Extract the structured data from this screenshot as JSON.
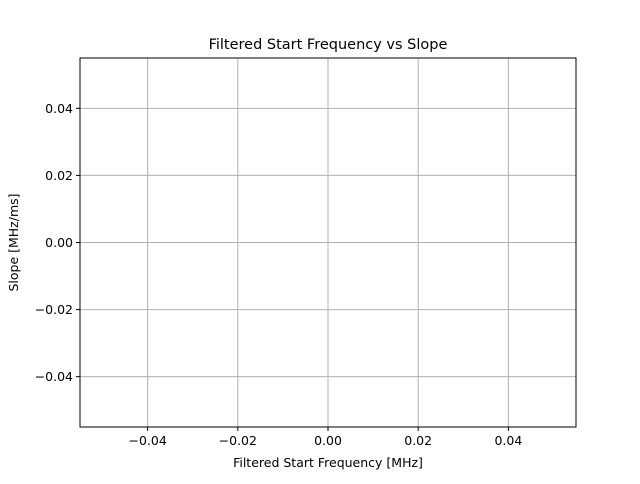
{
  "chart_data": {
    "type": "scatter",
    "title": "Filtered Start Frequency vs Slope",
    "xlabel": "Filtered Start Frequency [MHz]",
    "ylabel": "Slope [MHz/ms]",
    "xlim": [
      -0.055,
      0.055
    ],
    "ylim": [
      -0.055,
      0.055
    ],
    "xticks": [
      -0.04,
      -0.02,
      0.0,
      0.02,
      0.04
    ],
    "yticks": [
      -0.04,
      -0.02,
      0.0,
      0.02,
      0.04
    ],
    "xtick_labels": [
      "−0.04",
      "−0.02",
      "0.00",
      "0.02",
      "0.04"
    ],
    "ytick_labels": [
      "−0.04",
      "−0.02",
      "0.00",
      "0.02",
      "0.04"
    ],
    "grid": true,
    "series": [
      {
        "x": [],
        "y": []
      }
    ],
    "colors": {
      "grid": "#b0b0b0",
      "axes": "#000000",
      "background": "#ffffff"
    }
  }
}
